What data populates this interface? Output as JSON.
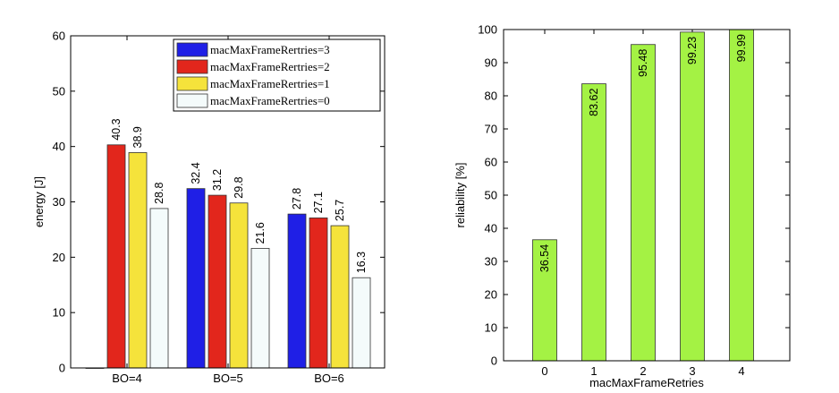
{
  "chart_data": [
    {
      "type": "bar",
      "ylabel": "energy [J]",
      "xlabel": "",
      "ylim": [
        0,
        60
      ],
      "yticks": [
        0,
        10,
        20,
        30,
        40,
        50,
        60
      ],
      "categories": [
        "BO=4",
        "BO=5",
        "BO=6"
      ],
      "legend_position": "top-right",
      "series": [
        {
          "name": "macMaxFrameRertries=3",
          "color": "#1f1fe6",
          "values": [
            0,
            32.4,
            27.8
          ],
          "labels": [
            "",
            "32.4",
            "27.8"
          ]
        },
        {
          "name": "macMaxFrameRertries=2",
          "color": "#e2261c",
          "values": [
            40.3,
            31.2,
            27.1
          ],
          "labels": [
            "40.3",
            "31.2",
            "27.1"
          ]
        },
        {
          "name": "macMaxFrameRertries=1",
          "color": "#f5e33b",
          "values": [
            38.9,
            29.8,
            25.7
          ],
          "labels": [
            "38.9",
            "29.8",
            "25.7"
          ]
        },
        {
          "name": "macMaxFrameRertries=0",
          "color": "#f4fbfb",
          "values": [
            28.8,
            21.6,
            16.3
          ],
          "labels": [
            "28.8",
            "21.6",
            "16.3"
          ]
        }
      ]
    },
    {
      "type": "bar",
      "ylabel": "reliability [%]",
      "xlabel": "macMaxFrameRetries",
      "ylim": [
        0,
        100
      ],
      "yticks": [
        0,
        10,
        20,
        30,
        40,
        50,
        60,
        70,
        80,
        90,
        100
      ],
      "categories": [
        "0",
        "1",
        "2",
        "3",
        "4"
      ],
      "color": "#a4f244",
      "values": [
        36.54,
        83.62,
        95.48,
        99.23,
        99.99
      ],
      "labels": [
        "36.54",
        "83.62",
        "95.48",
        "99.23",
        "99.99"
      ]
    }
  ]
}
